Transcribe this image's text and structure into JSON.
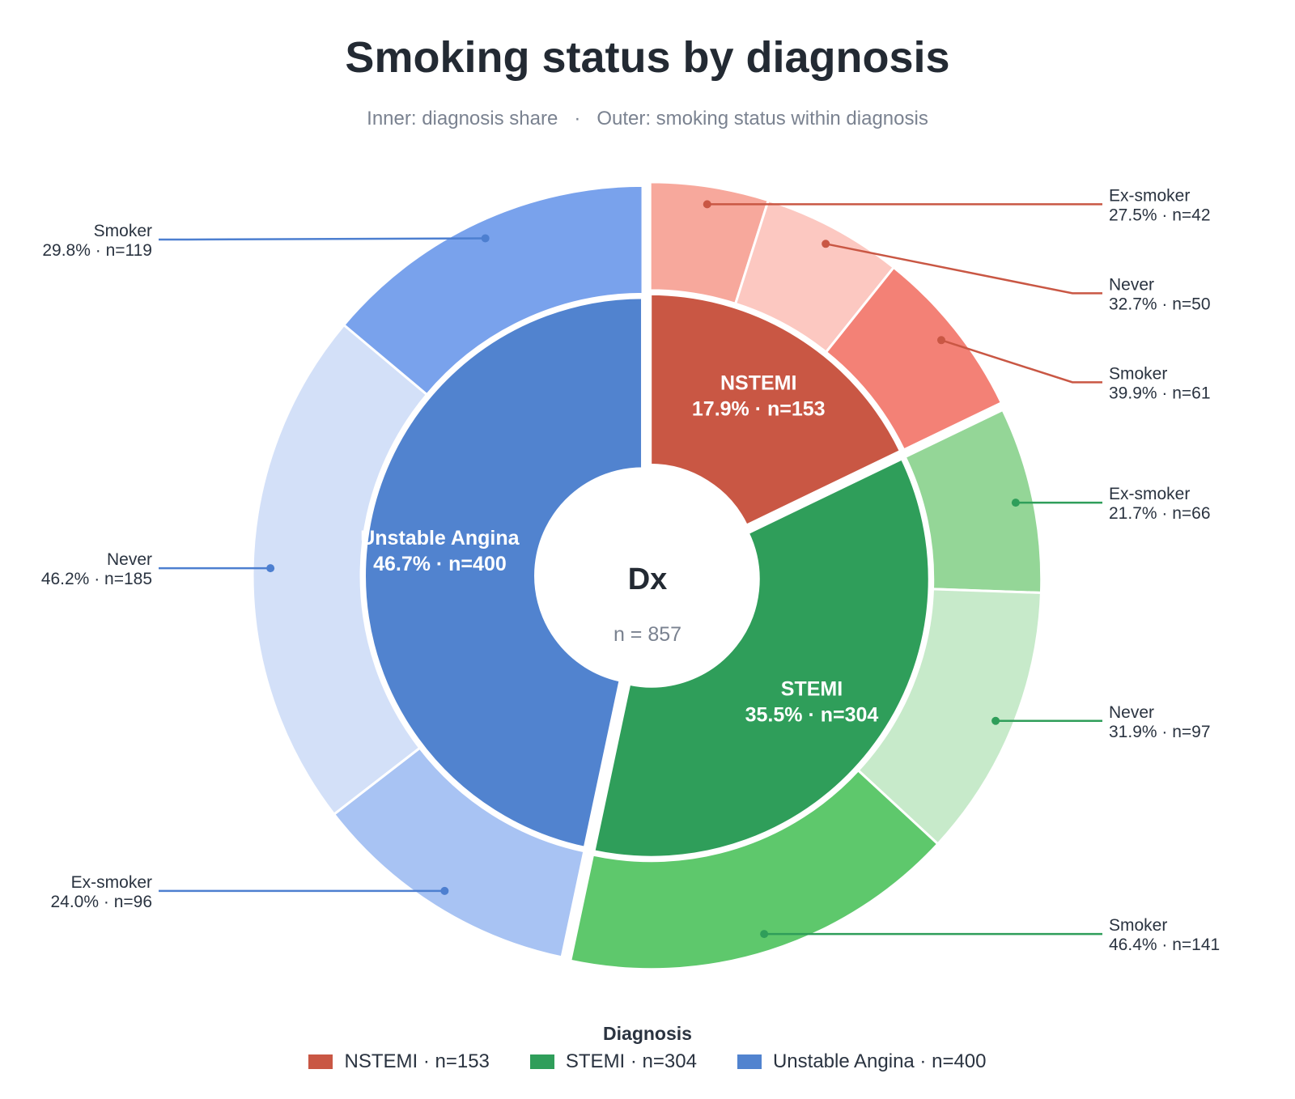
{
  "chart_data": {
    "type": "sunburst",
    "title": "Smoking status by diagnosis",
    "subtitle": {
      "inner": "Inner: diagnosis share",
      "separator": "·",
      "outer": "Outer: smoking status within diagnosis"
    },
    "center": {
      "label": "Dx",
      "total_label": "n = 857",
      "total": 857
    },
    "legend": {
      "title": "Diagnosis",
      "placement": "bottom-center"
    },
    "groups": [
      {
        "name": "NSTEMI",
        "n": 153,
        "share_pct": 17.9,
        "label_line1": "NSTEMI",
        "label_line2": "17.9%  ·  n=153",
        "legend_label": "NSTEMI  ·  n=153",
        "color": "#c95744",
        "line_color": "#c95744",
        "children": [
          {
            "name": "Ex-smoker",
            "n": 42,
            "pct": 27.5,
            "detail": "27.5%  ·  n=42",
            "color": "#f7a89c"
          },
          {
            "name": "Never",
            "n": 50,
            "pct": 32.7,
            "detail": "32.7%  ·  n=50",
            "color": "#fcc8c1"
          },
          {
            "name": "Smoker",
            "n": 61,
            "pct": 39.9,
            "detail": "39.9%  ·  n=61",
            "color": "#f38176"
          }
        ]
      },
      {
        "name": "STEMI",
        "n": 304,
        "share_pct": 35.5,
        "label_line1": "STEMI",
        "label_line2": "35.5%  ·  n=304",
        "legend_label": "STEMI  ·  n=304",
        "color": "#2f9e5a",
        "line_color": "#2f9e5a",
        "children": [
          {
            "name": "Ex-smoker",
            "n": 66,
            "pct": 21.7,
            "detail": "21.7%  ·  n=66",
            "color": "#94d697"
          },
          {
            "name": "Never",
            "n": 97,
            "pct": 31.9,
            "detail": "31.9%  ·  n=97",
            "color": "#c7eaca"
          },
          {
            "name": "Smoker",
            "n": 141,
            "pct": 46.4,
            "detail": "46.4%  ·  n=141",
            "color": "#5ec86c"
          }
        ]
      },
      {
        "name": "Unstable Angina",
        "n": 400,
        "share_pct": 46.7,
        "label_line1": "Unstable Angina",
        "label_line2": "46.7%  ·  n=400",
        "legend_label": "Unstable Angina  ·  n=400",
        "color": "#5183cf",
        "line_color": "#4d7fd0",
        "children": [
          {
            "name": "Ex-smoker",
            "n": 96,
            "pct": 24.0,
            "detail": "24.0%  ·  n=96",
            "color": "#a8c3f3"
          },
          {
            "name": "Never",
            "n": 185,
            "pct": 46.2,
            "detail": "46.2%  ·  n=185",
            "color": "#d3e0f8"
          },
          {
            "name": "Smoker",
            "n": 119,
            "pct": 29.8,
            "detail": "29.8%  ·  n=119",
            "color": "#79a2ec"
          }
        ]
      }
    ]
  }
}
